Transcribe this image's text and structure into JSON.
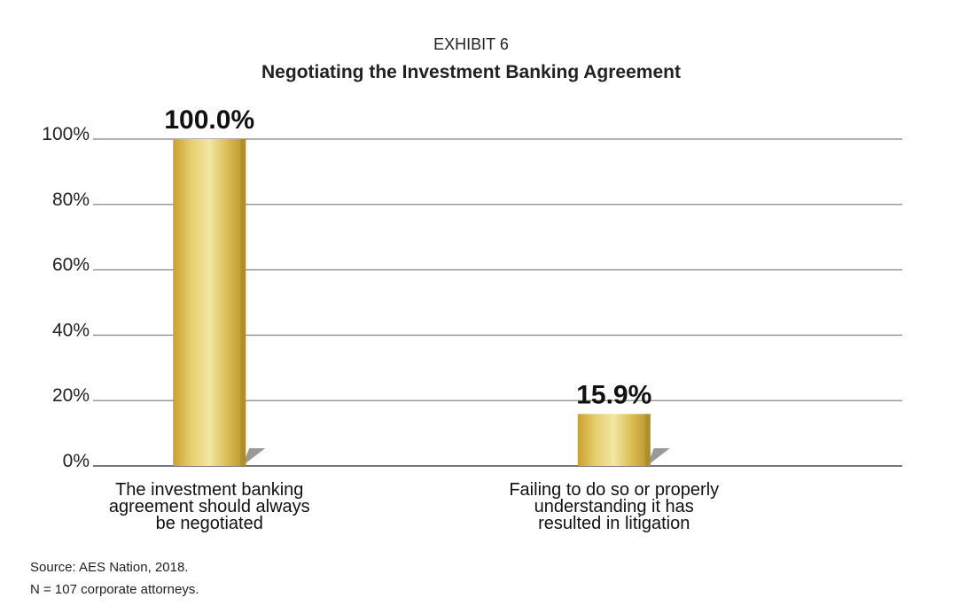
{
  "chart_data": {
    "type": "bar",
    "supertitle": "EXHIBIT 6",
    "title": "Negotiating the Investment Banking Agreement",
    "categories": [
      [
        "The investment banking",
        "agreement should always",
        "be negotiated"
      ],
      [
        "Failing to do so or properly",
        "understanding it has",
        "resulted in litigation"
      ]
    ],
    "values": [
      100.0,
      15.9
    ],
    "value_labels": [
      "100.0%",
      "15.9%"
    ],
    "y_ticks": [
      "0%",
      "20%",
      "40%",
      "60%",
      "80%",
      "100%"
    ],
    "ylim": [
      0,
      100
    ],
    "grid": true,
    "bar_color": "#d4b84a"
  },
  "footer": {
    "source": "Source: AES Nation, 2018.",
    "note": "N = 107 corporate attorneys."
  }
}
